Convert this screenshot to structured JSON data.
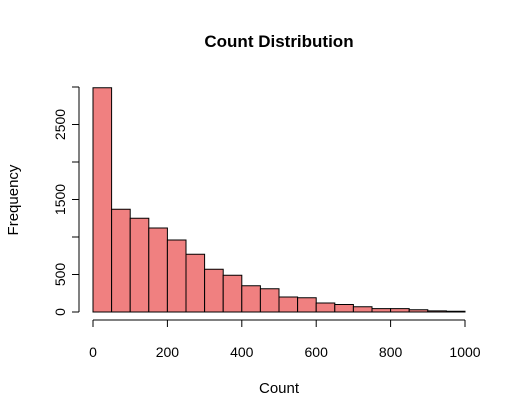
{
  "chart_data": {
    "type": "bar",
    "subtype": "histogram",
    "title": "Count Distribution",
    "xlabel": "Count",
    "ylabel": "Frequency",
    "bar_color": "#f08080",
    "bin_width": 50,
    "xlim": [
      0,
      1000
    ],
    "ylim": [
      0,
      3000
    ],
    "x_ticks": [
      0,
      200,
      400,
      600,
      800,
      1000
    ],
    "y_ticks": [
      0,
      500,
      1000,
      1500,
      2000,
      2500,
      3000
    ],
    "y_tick_labels": [
      "0",
      "500",
      "",
      "1500",
      "",
      "2500",
      ""
    ],
    "bins": [
      {
        "start": 0,
        "end": 50,
        "value": 2990
      },
      {
        "start": 50,
        "end": 100,
        "value": 1370
      },
      {
        "start": 100,
        "end": 150,
        "value": 1250
      },
      {
        "start": 150,
        "end": 200,
        "value": 1120
      },
      {
        "start": 200,
        "end": 250,
        "value": 960
      },
      {
        "start": 250,
        "end": 300,
        "value": 770
      },
      {
        "start": 300,
        "end": 350,
        "value": 570
      },
      {
        "start": 350,
        "end": 400,
        "value": 490
      },
      {
        "start": 400,
        "end": 450,
        "value": 350
      },
      {
        "start": 450,
        "end": 500,
        "value": 310
      },
      {
        "start": 500,
        "end": 550,
        "value": 200
      },
      {
        "start": 550,
        "end": 600,
        "value": 190
      },
      {
        "start": 600,
        "end": 650,
        "value": 120
      },
      {
        "start": 650,
        "end": 700,
        "value": 100
      },
      {
        "start": 700,
        "end": 750,
        "value": 70
      },
      {
        "start": 750,
        "end": 800,
        "value": 45
      },
      {
        "start": 800,
        "end": 850,
        "value": 45
      },
      {
        "start": 850,
        "end": 900,
        "value": 30
      },
      {
        "start": 900,
        "end": 950,
        "value": 15
      },
      {
        "start": 950,
        "end": 1000,
        "value": 10
      }
    ]
  }
}
